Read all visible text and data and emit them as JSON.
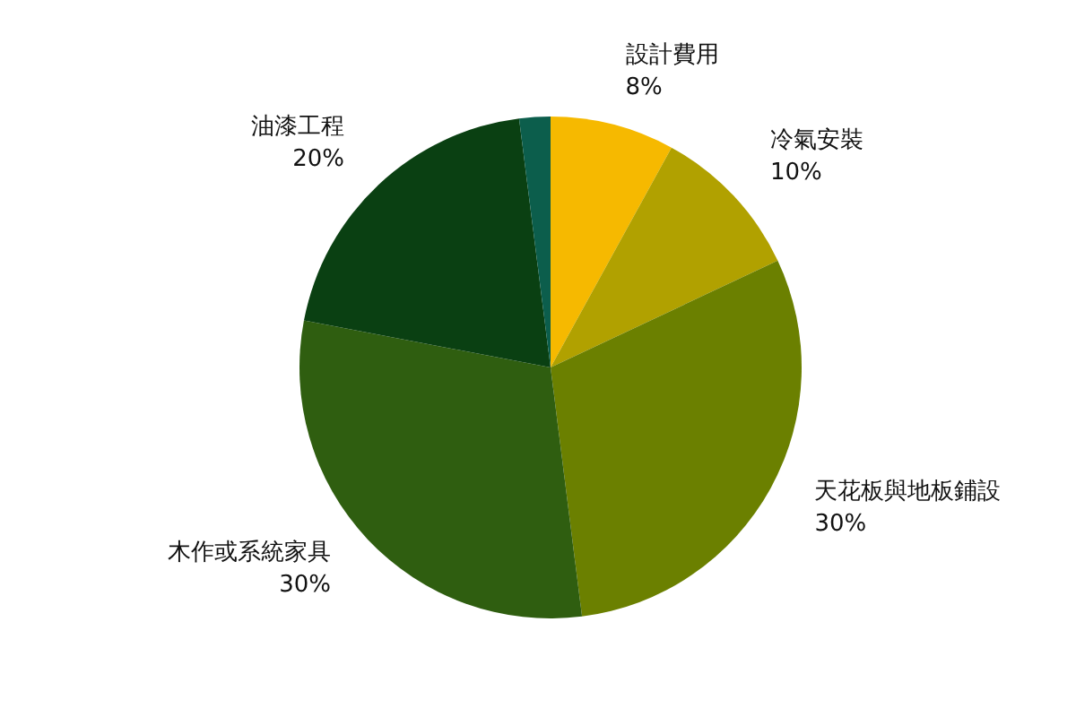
{
  "chart_data": {
    "type": "pie",
    "categories": [
      "設計費用",
      "冷氣安裝",
      "天花板與地板鋪設",
      "木作或系統家具",
      "油漆工程",
      null
    ],
    "values": [
      8,
      10,
      30,
      30,
      20,
      2
    ],
    "colors": [
      "#f6b900",
      "#b1a100",
      "#6b8000",
      "#2f5e10",
      "#0a4012",
      "#0c5e4c"
    ],
    "value_labels": [
      "8%",
      "10%",
      "30%",
      "30%",
      "20%",
      null
    ],
    "legend": false
  }
}
